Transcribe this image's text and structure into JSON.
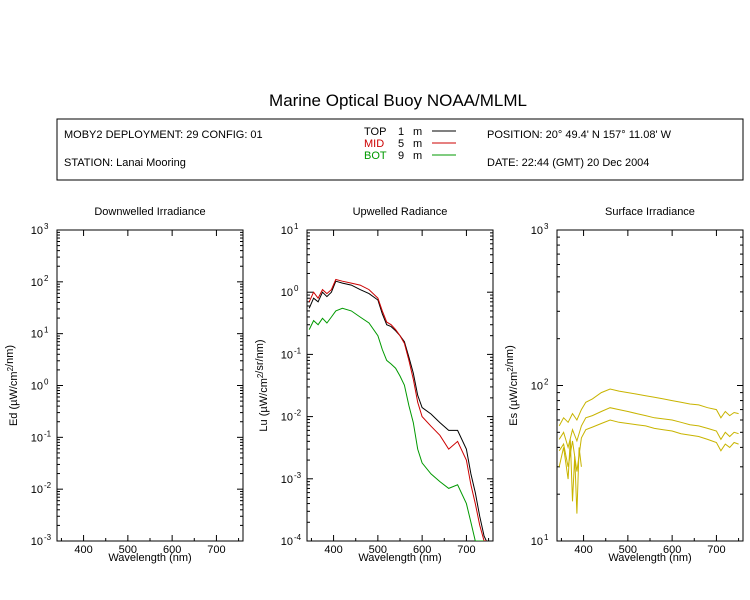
{
  "title": "Marine Optical Buoy NOAA/MLML",
  "info": {
    "deployment": "MOBY2 DEPLOYMENT: 29 CONFIG: 01",
    "station": "STATION: Lanai Mooring",
    "position": "POSITION: 20° 49.4' N   157° 11.08' W",
    "date": "DATE: 22:44 (GMT) 20 Dec 2004"
  },
  "legend": [
    {
      "name": "TOP",
      "depth": "1",
      "unit": "m",
      "color": "#000000"
    },
    {
      "name": "MID",
      "depth": "5",
      "unit": "m",
      "color": "#cc0000"
    },
    {
      "name": "BOT",
      "depth": "9",
      "unit": "m",
      "color": "#009900"
    }
  ],
  "chart_data": [
    {
      "type": "line",
      "title": "Downwelled Irradiance",
      "xlabel": "Wavelength (nm)",
      "ylabel_main": "Ed  (",
      "ylabel_mu": "µ",
      "ylabel_unit": "W/cm",
      "ylabel_sup": "2",
      "ylabel_tail": "/nm)",
      "yscale": "log",
      "xlim": [
        340,
        760
      ],
      "ylim_exp": [
        -3,
        3
      ],
      "xticks": [
        "400",
        "500",
        "600",
        "700"
      ],
      "xtick_values": [
        400,
        500,
        600,
        700
      ],
      "ytick_exp": [
        -3,
        -2,
        -1,
        0,
        1,
        2,
        3
      ],
      "series": []
    },
    {
      "type": "line",
      "title": "Upwelled Radiance",
      "xlabel": "Wavelength (nm)",
      "ylabel_main": "Lu  (",
      "ylabel_mu": "µ",
      "ylabel_unit": "W/cm",
      "ylabel_sup": "2",
      "ylabel_tail": "/sr/nm)",
      "yscale": "log",
      "xlim": [
        340,
        760
      ],
      "ylim_exp": [
        -4,
        1
      ],
      "xticks": [
        "400",
        "500",
        "600",
        "700"
      ],
      "xtick_values": [
        400,
        500,
        600,
        700
      ],
      "ytick_exp": [
        -4,
        -3,
        -2,
        -1,
        0,
        1
      ],
      "series": [
        {
          "name": "TOP",
          "color": "#000000",
          "x": [
            345,
            355,
            365,
            375,
            385,
            395,
            405,
            420,
            440,
            460,
            480,
            500,
            510,
            520,
            530,
            540,
            550,
            560,
            570,
            580,
            590,
            600,
            620,
            640,
            660,
            680,
            700,
            710,
            720,
            730,
            740,
            745
          ],
          "y": [
            0.55,
            0.8,
            0.7,
            1.0,
            0.85,
            1.0,
            1.5,
            1.4,
            1.3,
            1.1,
            0.95,
            0.75,
            0.45,
            0.3,
            0.28,
            0.24,
            0.2,
            0.16,
            0.09,
            0.05,
            0.022,
            0.014,
            0.011,
            0.008,
            0.006,
            0.006,
            0.003,
            0.0012,
            0.0006,
            0.00025,
            0.00012,
            0.0001
          ]
        },
        {
          "name": "MID",
          "color": "#cc0000",
          "x": [
            345,
            355,
            365,
            375,
            385,
            395,
            405,
            420,
            440,
            460,
            480,
            500,
            510,
            520,
            530,
            540,
            550,
            560,
            570,
            580,
            590,
            600,
            620,
            640,
            660,
            680,
            700,
            710,
            720,
            730,
            740,
            745
          ],
          "y": [
            0.7,
            1.0,
            0.8,
            1.1,
            0.95,
            1.1,
            1.6,
            1.5,
            1.4,
            1.3,
            1.1,
            0.8,
            0.5,
            0.33,
            0.3,
            0.25,
            0.2,
            0.15,
            0.08,
            0.04,
            0.017,
            0.01,
            0.007,
            0.005,
            0.003,
            0.004,
            0.002,
            0.0008,
            0.0004,
            0.00018,
            0.0001,
            0.0001
          ]
        },
        {
          "name": "BOT",
          "color": "#009900",
          "x": [
            345,
            355,
            365,
            375,
            385,
            395,
            405,
            420,
            440,
            460,
            480,
            500,
            510,
            520,
            530,
            540,
            550,
            560,
            570,
            580,
            590,
            600,
            620,
            640,
            660,
            680,
            700,
            710,
            720,
            730,
            740
          ],
          "y": [
            0.25,
            0.35,
            0.3,
            0.38,
            0.32,
            0.4,
            0.5,
            0.55,
            0.5,
            0.4,
            0.32,
            0.2,
            0.12,
            0.08,
            0.07,
            0.06,
            0.045,
            0.032,
            0.015,
            0.008,
            0.003,
            0.0018,
            0.0012,
            0.0009,
            0.0007,
            0.0008,
            0.0004,
            0.0002,
            0.0001,
            0.0001,
            0.0001
          ]
        }
      ]
    },
    {
      "type": "line",
      "title": "Surface Irradiance",
      "xlabel": "Wavelength (nm)",
      "ylabel_main": "Es  (",
      "ylabel_mu": "µ",
      "ylabel_unit": "W/cm",
      "ylabel_sup": "2",
      "ylabel_tail": "/nm)",
      "yscale": "log",
      "xlim": [
        340,
        760
      ],
      "ylim_exp": [
        1,
        3
      ],
      "xticks": [
        "400",
        "500",
        "600",
        "700"
      ],
      "xtick_values": [
        400,
        500,
        600,
        700
      ],
      "ytick_exp": [
        1,
        2,
        3
      ],
      "series": [
        {
          "name": "",
          "color": "#c8b400",
          "x": [
            345,
            355,
            365,
            375,
            385,
            395,
            405,
            420,
            440,
            460,
            480,
            500,
            520,
            540,
            560,
            580,
            600,
            620,
            640,
            660,
            680,
            700,
            710,
            720,
            730,
            740,
            750
          ],
          "y": [
            55,
            62,
            58,
            66,
            60,
            70,
            78,
            82,
            90,
            95,
            92,
            90,
            88,
            86,
            84,
            82,
            80,
            78,
            76,
            75,
            72,
            70,
            62,
            68,
            64,
            67,
            66
          ]
        },
        {
          "name": "",
          "color": "#c8b400",
          "x": [
            345,
            355,
            365,
            375,
            385,
            395,
            405,
            420,
            440,
            460,
            480,
            500,
            520,
            540,
            560,
            580,
            600,
            620,
            640,
            660,
            680,
            700,
            710,
            720,
            730,
            740,
            750
          ],
          "y": [
            45,
            50,
            40,
            52,
            44,
            55,
            62,
            64,
            68,
            72,
            70,
            68,
            66,
            64,
            62,
            61,
            60,
            58,
            56,
            55,
            53,
            51,
            45,
            50,
            47,
            50,
            49
          ]
        },
        {
          "name": "",
          "color": "#c8b400",
          "x": [
            345,
            355,
            365,
            375,
            385,
            395,
            405,
            420,
            440,
            460,
            480,
            500,
            520,
            540,
            560,
            580,
            600,
            620,
            640,
            660,
            680,
            700,
            710,
            720,
            730,
            740,
            750
          ],
          "y": [
            38,
            42,
            30,
            44,
            28,
            46,
            52,
            54,
            57,
            60,
            58,
            57,
            56,
            55,
            53,
            52,
            51,
            49,
            48,
            47,
            45,
            43,
            38,
            42,
            40,
            43,
            42
          ]
        },
        {
          "name": "",
          "color": "#c8b400",
          "x": [
            345,
            355,
            365,
            370,
            375,
            380,
            385,
            390,
            395
          ],
          "y": [
            30,
            40,
            25,
            45,
            18,
            35,
            15,
            40,
            30
          ]
        }
      ]
    }
  ]
}
